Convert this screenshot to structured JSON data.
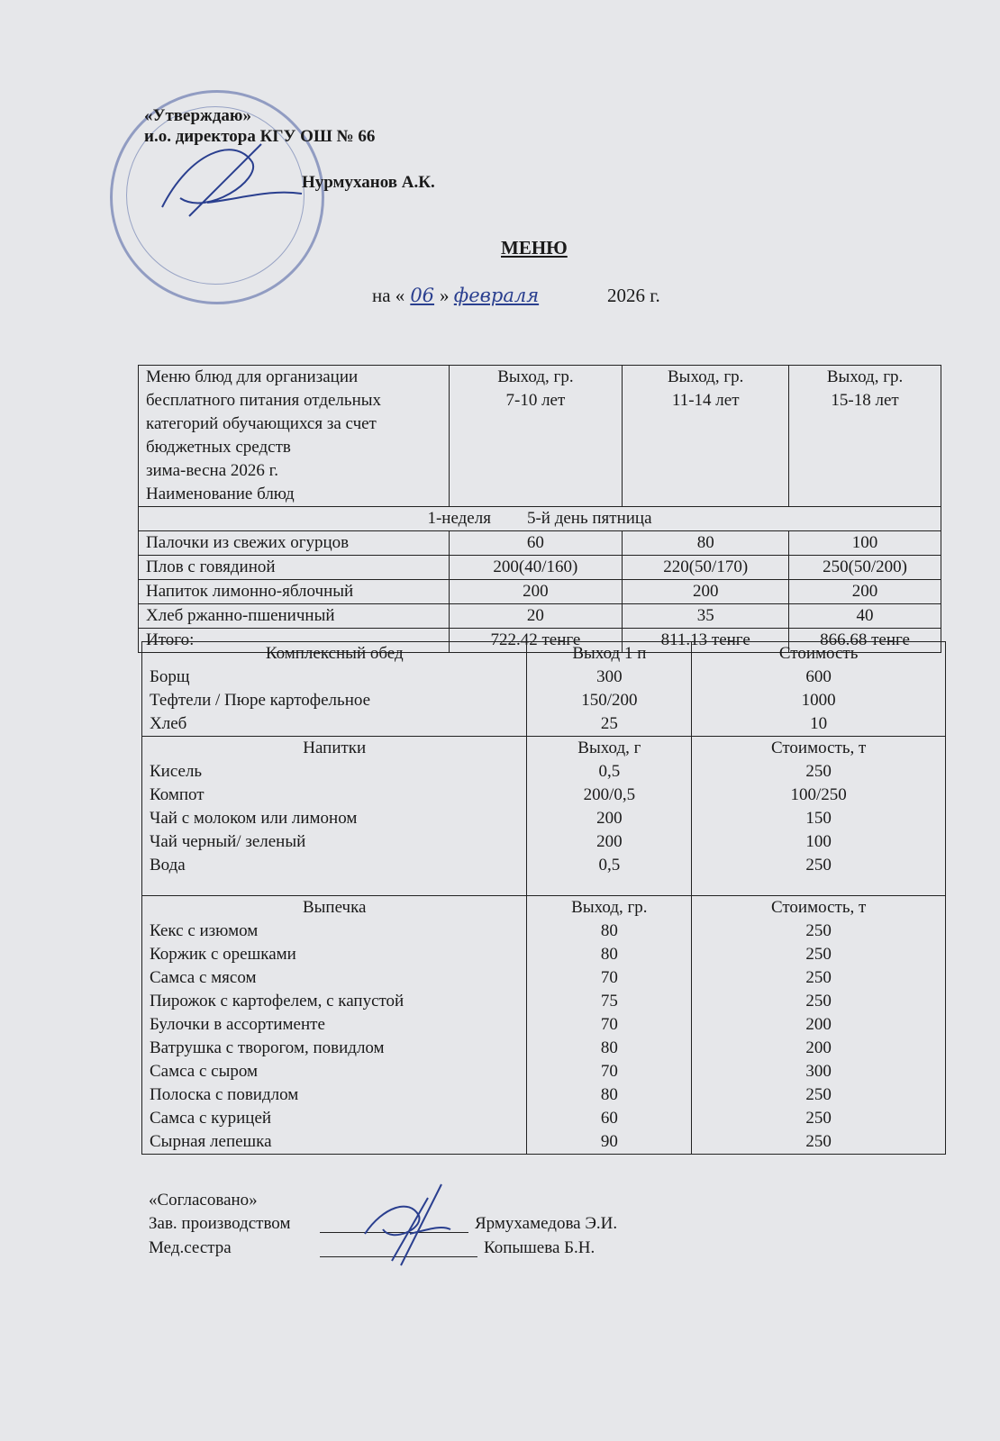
{
  "header": {
    "approve": "«Утверждаю»",
    "position": "и.о. директора  КГУ ОШ № 66",
    "name": "Нурмуханов А.К.",
    "title": "МЕНЮ",
    "date_prefix": "на «",
    "day": "06",
    "date_mid": "»",
    "month": "февраля",
    "year": "2026 г."
  },
  "table1": {
    "header": [
      "Меню блюд для организации",
      "бесплатного питания отдельных",
      "категорий обучающихся за счет",
      "бюджетных средств",
      "зима-весна  2026 г.",
      "Наименование блюд"
    ],
    "cols": [
      [
        "Выход, гр.",
        "7-10 лет"
      ],
      [
        "Выход, гр.",
        "11-14 лет"
      ],
      [
        "Выход, гр.",
        "15-18 лет"
      ]
    ],
    "week": "1-неделя",
    "day": "5-й день пятница",
    "rows": [
      [
        "Палочки  из свежих огурцов",
        "60",
        "80",
        "100"
      ],
      [
        "Плов с говядиной",
        "200(40/160)",
        "220(50/170)",
        "250(50/200)"
      ],
      [
        "Напиток лимонно-яблочный",
        "200",
        "200",
        "200"
      ],
      [
        "Хлеб ржанно-пшеничный",
        "20",
        "35",
        "40"
      ],
      [
        "Итого:",
        "722.42 тенге",
        "811.13 тенге",
        "866.68 тенге"
      ]
    ]
  },
  "table2": {
    "sections": [
      {
        "title": "Комплексный обед",
        "col2": "Выход 1 п",
        "col3": "Стоимость",
        "items": [
          [
            "Борщ",
            "300",
            "600"
          ],
          [
            "Тефтели / Пюре картофельное",
            "150/200",
            "1000"
          ],
          [
            "Хлеб",
            "25",
            "10"
          ]
        ]
      },
      {
        "title": "Напитки",
        "col2": "Выход, г",
        "col3": "Стоимость, т",
        "items": [
          [
            "Кисель",
            "0,5",
            "250"
          ],
          [
            "Компот",
            "200/0,5",
            "100/250"
          ],
          [
            "Чай с молоком или лимоном",
            "200",
            "150"
          ],
          [
            "Чай черный/ зеленый",
            "200",
            "100"
          ],
          [
            "Вода",
            "0,5",
            "250"
          ]
        ]
      },
      {
        "title": "Выпечка",
        "col2": "Выход, гр.",
        "col3": "Стоимость, т",
        "items": [
          [
            "Кекс с изюмом",
            "80",
            "250"
          ],
          [
            "Коржик с орешками",
            "80",
            "250"
          ],
          [
            "Самса с мясом",
            "70",
            "250"
          ],
          [
            "Пирожок с картофелем, с капустой",
            "75",
            "250"
          ],
          [
            "Булочки в ассортименте",
            "70",
            "200"
          ],
          [
            "Ватрушка с творогом, повидлом",
            "80",
            "200"
          ],
          [
            "Самса с сыром",
            "70",
            "300"
          ],
          [
            "Полоска с повидлом",
            "80",
            "250"
          ],
          [
            "Самса с курицей",
            "60",
            "250"
          ],
          [
            "Сырная лепешка",
            "90",
            "250"
          ]
        ]
      }
    ]
  },
  "footer": {
    "agreed": "«Согласовано»",
    "role1": "Зав. производством",
    "name1": "Ярмухамедова Э.И.",
    "role2": "Мед.сестра",
    "name2": "Копышева Б.Н."
  },
  "stamp_text": "КГУ ОШ № 66"
}
